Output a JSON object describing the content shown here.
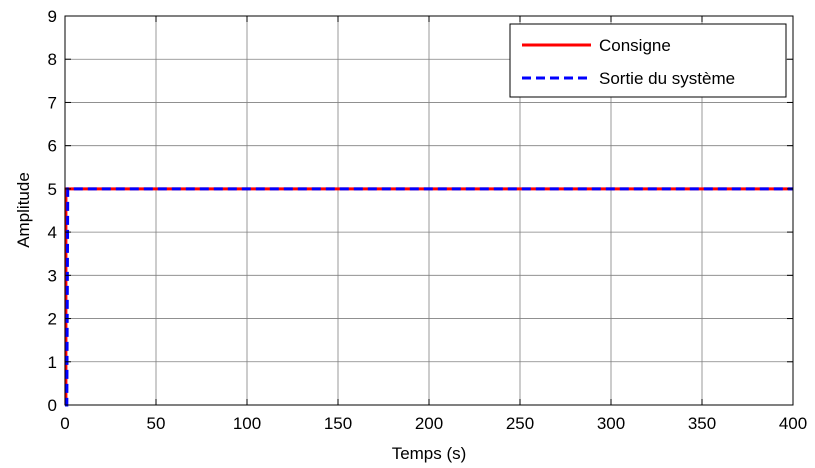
{
  "chart_data": {
    "type": "line",
    "xlabel": "Temps (s)",
    "ylabel": "Amplitude",
    "xlim": [
      0,
      400
    ],
    "ylim": [
      0,
      9
    ],
    "xticks": [
      0,
      50,
      100,
      150,
      200,
      250,
      300,
      350,
      400
    ],
    "yticks": [
      0,
      1,
      2,
      3,
      4,
      5,
      6,
      7,
      8,
      9
    ],
    "grid": true,
    "legend_position": "top-right",
    "series": [
      {
        "name": "Consigne",
        "color": "#ff0000",
        "dash": "solid",
        "x": [
          0,
          0.5,
          0.5,
          400
        ],
        "y": [
          0,
          0,
          5,
          5
        ]
      },
      {
        "name": "Sortie du système",
        "color": "#0000ff",
        "dash": "dashed",
        "x": [
          0,
          1,
          1.5,
          400
        ],
        "y": [
          0,
          0,
          5,
          5
        ]
      }
    ]
  }
}
